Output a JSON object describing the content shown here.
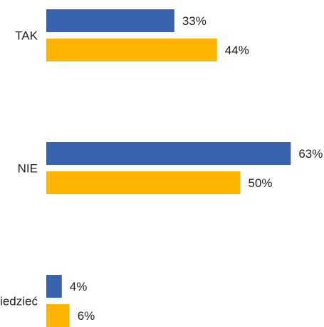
{
  "chart_data": {
    "type": "bar",
    "orientation": "horizontal",
    "categories": [
      "TAK",
      "NIE",
      "Nie wiem / trudno powiedzieć"
    ],
    "series": [
      {
        "color": "#3A63AE",
        "values": [
          33,
          63,
          4
        ]
      },
      {
        "color": "#FFB500",
        "values": [
          44,
          50,
          6
        ]
      }
    ],
    "value_suffix": "%",
    "xlim": [
      0,
      100
    ],
    "grid": false,
    "legend": "none"
  }
}
